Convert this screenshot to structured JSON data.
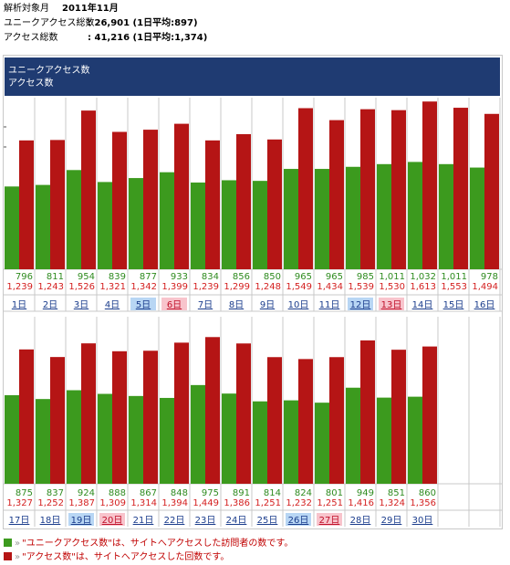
{
  "summary": {
    "period_label": "解析対象月",
    "period_value": "2011年11月",
    "unique_label": "ユニークアクセス総数",
    "unique_value": ": 26,901 (1日平均:897)",
    "access_label": "アクセス総数",
    "access_value": ": 41,216 (1日平均:1,374)"
  },
  "legend": {
    "unique": "ユニークアクセス数",
    "access": "アクセス数"
  },
  "colors": {
    "unique": "#3c9a1e",
    "access": "#b51515",
    "header": "#1f3b72",
    "saturday_bg": "#b8d6f4",
    "sunday_bg": "#f8c4cc",
    "unique_text": "#2e8b1f",
    "access_text": "#d42020"
  },
  "chart_data": {
    "type": "bar",
    "title": "",
    "xlabel": "",
    "ylabel": "",
    "categories": [
      "1日",
      "2日",
      "3日",
      "4日",
      "5日",
      "6日",
      "7日",
      "8日",
      "9日",
      "10日",
      "11日",
      "12日",
      "13日",
      "14日",
      "15日",
      "16日",
      "17日",
      "18日",
      "19日",
      "20日",
      "21日",
      "22日",
      "23日",
      "24日",
      "25日",
      "26日",
      "27日",
      "28日",
      "29日",
      "30日"
    ],
    "series": [
      {
        "name": "ユニークアクセス数",
        "values": [
          796,
          811,
          954,
          839,
          877,
          933,
          834,
          856,
          850,
          965,
          965,
          985,
          1011,
          1032,
          1011,
          978,
          875,
          837,
          924,
          888,
          867,
          848,
          975,
          891,
          814,
          824,
          801,
          949,
          851,
          860
        ]
      },
      {
        "name": "アクセス数",
        "values": [
          1239,
          1243,
          1526,
          1321,
          1342,
          1399,
          1239,
          1299,
          1248,
          1549,
          1434,
          1539,
          1530,
          1613,
          1553,
          1494,
          1327,
          1252,
          1387,
          1309,
          1314,
          1394,
          1449,
          1386,
          1251,
          1232,
          1251,
          1416,
          1324,
          1356
        ]
      }
    ],
    "value_labels": {
      "unique": [
        "796",
        "811",
        "954",
        "839",
        "877",
        "933",
        "834",
        "856",
        "850",
        "965",
        "965",
        "985",
        "1,011",
        "1,032",
        "1,011",
        "978",
        "875",
        "837",
        "924",
        "888",
        "867",
        "848",
        "975",
        "891",
        "814",
        "824",
        "801",
        "949",
        "851",
        "860"
      ],
      "access": [
        "1,239",
        "1,243",
        "1,526",
        "1,321",
        "1,342",
        "1,399",
        "1,239",
        "1,299",
        "1,248",
        "1,549",
        "1,434",
        "1,539",
        "1,530",
        "1,613",
        "1,553",
        "1,494",
        "1,327",
        "1,252",
        "1,387",
        "1,309",
        "1,314",
        "1,394",
        "1,449",
        "1,386",
        "1,251",
        "1,232",
        "1,251",
        "1,416",
        "1,324",
        "1,356"
      ]
    },
    "day_types": [
      "weekday",
      "weekday",
      "weekday",
      "weekday",
      "saturday",
      "sunday",
      "weekday",
      "weekday",
      "weekday",
      "weekday",
      "weekday",
      "saturday",
      "sunday",
      "weekday",
      "weekday",
      "weekday",
      "weekday",
      "weekday",
      "saturday",
      "sunday",
      "weekday",
      "weekday",
      "weekday",
      "weekday",
      "weekday",
      "saturday",
      "sunday",
      "weekday",
      "weekday",
      "weekday"
    ],
    "ylim": [
      0,
      1650
    ],
    "grid": true
  },
  "footnotes": [
    {
      "arrow": "»",
      "text": "\"ユニークアクセス数\"は、サイトへアクセスした訪問者の数です。",
      "color_key": "unique"
    },
    {
      "arrow": "»",
      "text": "\"アクセス数\"は、サイトへアクセスした回数です。",
      "color_key": "access"
    }
  ]
}
